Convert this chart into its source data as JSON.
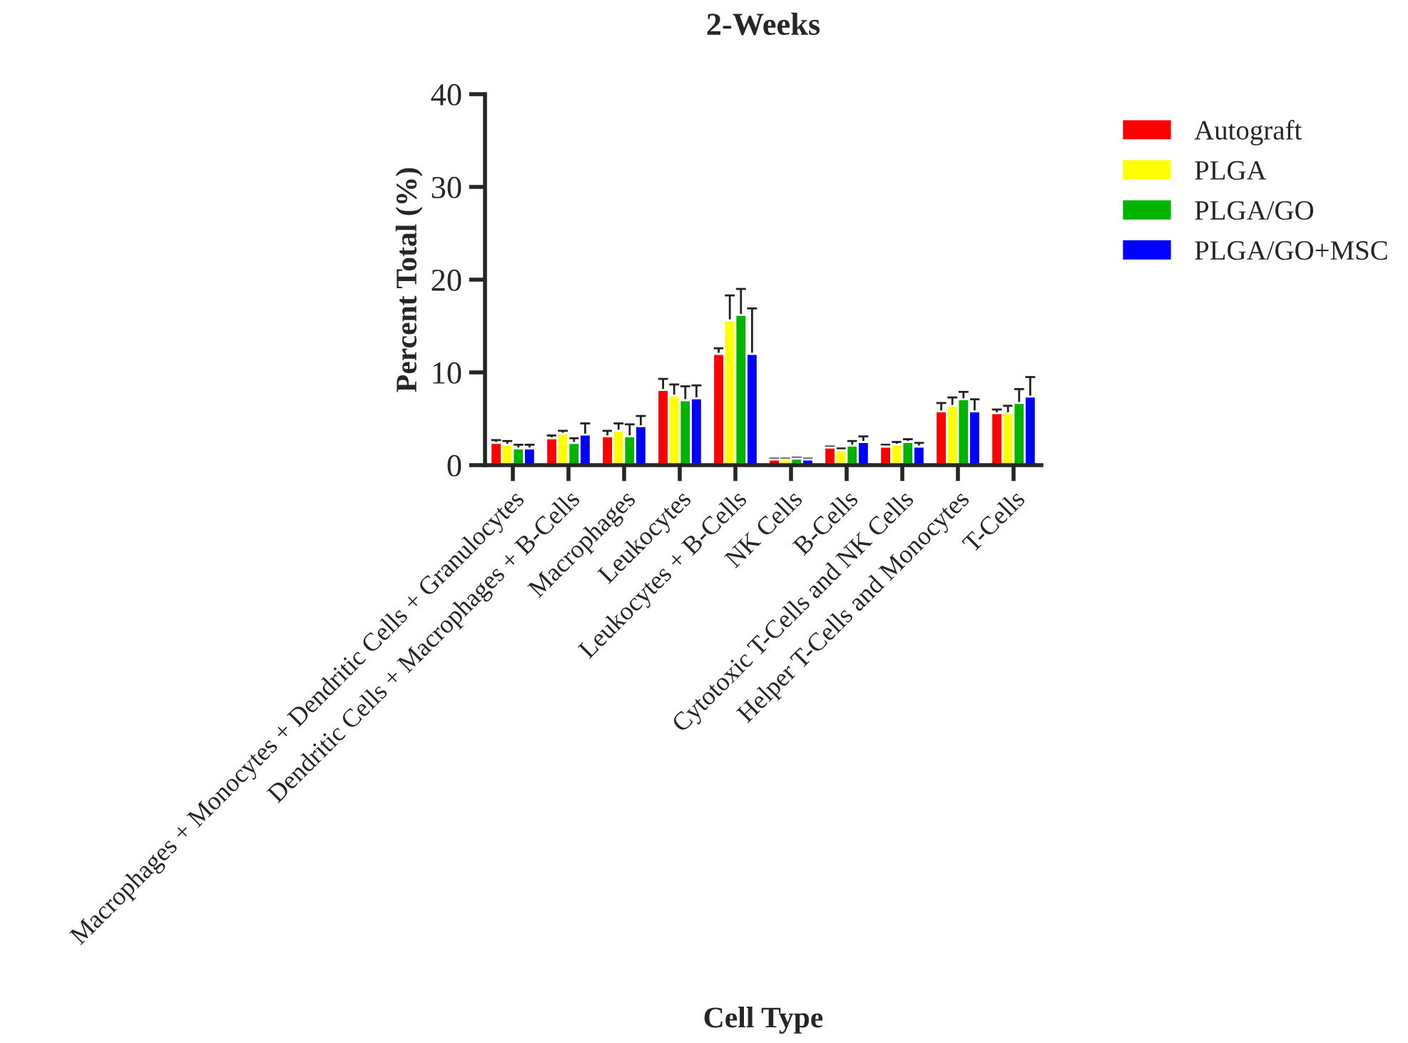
{
  "chart_data": {
    "type": "bar",
    "title": "2-Weeks",
    "xlabel": "Cell Type",
    "ylabel": "Percent Total (%)",
    "categories": [
      "Macrophages + Monocytes + Dendritic Cells + Granulocytes",
      "Dendritic Cells + Macrophages + B-Cells",
      "Macrophages",
      "Leukocytes",
      "Leukocytes + B-Cells",
      "NK Cells",
      "B-Cells",
      "Cytotoxic T-Cells and NK Cells",
      "Helper T-Cells and Monocytes",
      "T-Cells"
    ],
    "series": [
      {
        "name": "Autograft",
        "color": "#ff0000",
        "values": [
          2.4,
          2.9,
          3.1,
          8.1,
          12.0,
          0.6,
          1.9,
          2.0,
          5.8,
          5.6
        ],
        "errors": [
          0.3,
          0.3,
          0.6,
          1.2,
          0.6,
          0.1,
          0.1,
          0.2,
          0.9,
          0.4
        ]
      },
      {
        "name": "PLGA",
        "color": "#ffff00",
        "values": [
          2.2,
          3.4,
          3.7,
          7.5,
          15.6,
          0.6,
          1.6,
          2.2,
          6.4,
          5.6
        ],
        "errors": [
          0.4,
          0.3,
          0.8,
          1.2,
          2.7,
          0.1,
          0.2,
          0.3,
          0.9,
          0.8
        ]
      },
      {
        "name": "PLGA/GO",
        "color": "#00b400",
        "values": [
          1.8,
          2.4,
          3.1,
          7.0,
          16.2,
          0.7,
          2.1,
          2.5,
          7.1,
          6.7
        ],
        "errors": [
          0.4,
          0.5,
          1.3,
          1.5,
          2.8,
          0.1,
          0.5,
          0.3,
          0.8,
          1.5
        ]
      },
      {
        "name": "PLGA/GO+MSC",
        "color": "#0000ff",
        "values": [
          1.8,
          3.3,
          4.2,
          7.2,
          12.0,
          0.6,
          2.5,
          2.0,
          5.8,
          7.4
        ],
        "errors": [
          0.4,
          1.2,
          1.1,
          1.4,
          4.9,
          0.1,
          0.6,
          0.4,
          1.3,
          2.1
        ]
      }
    ],
    "ylim": [
      0,
      40
    ],
    "yticks": [
      0,
      10,
      20,
      30,
      40
    ],
    "grid": false,
    "legend": "top right"
  }
}
